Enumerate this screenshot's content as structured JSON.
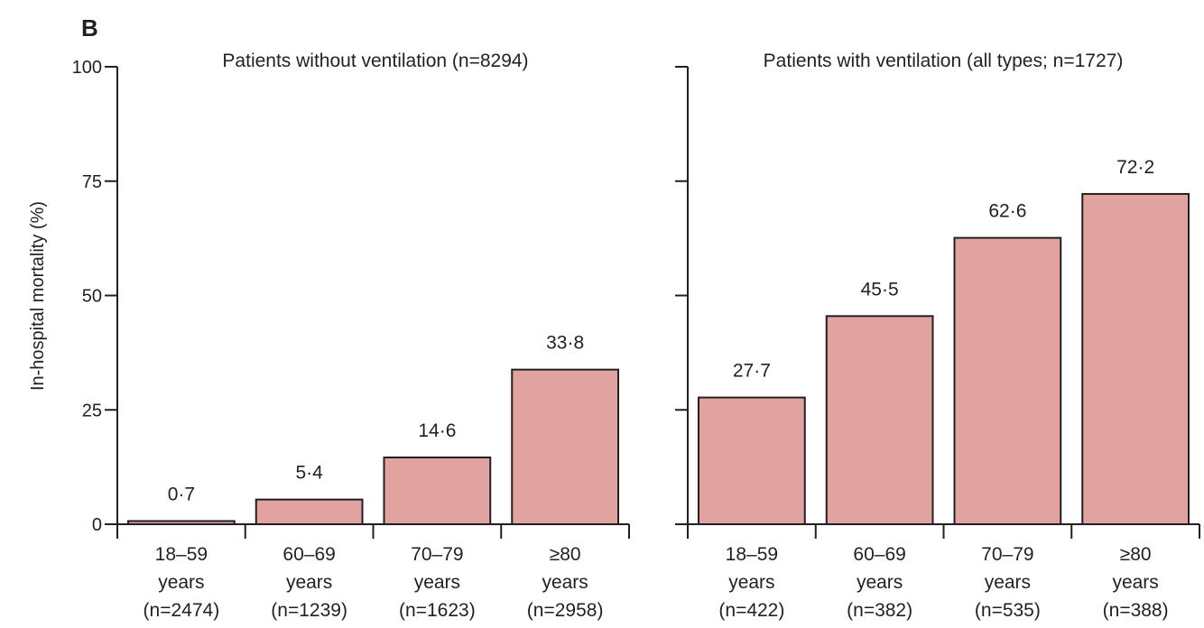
{
  "figure": {
    "panel_label": "B",
    "y_axis_title": "In-hospital mortality (%)",
    "bar_color": "#e0a39f",
    "axis_color": "#231f20"
  },
  "chart_data": [
    {
      "type": "bar",
      "title": "Patients without ventilation (n=8294)",
      "ylabel": "In-hospital mortality (%)",
      "ylim": [
        0,
        100
      ],
      "yticks": [
        0,
        25,
        50,
        75,
        100
      ],
      "grid": false,
      "categories": [
        [
          "18–59",
          "years",
          "(n=2474)"
        ],
        [
          "60–69",
          "years",
          "(n=1239)"
        ],
        [
          "70–79",
          "years",
          "(n=1623)"
        ],
        [
          "≥80",
          "years",
          "(n=2958)"
        ]
      ],
      "values": [
        0.7,
        5.4,
        14.6,
        33.8
      ],
      "value_labels": [
        "0·7",
        "5·4",
        "14·6",
        "33·8"
      ]
    },
    {
      "type": "bar",
      "title": "Patients with ventilation (all types; n=1727)",
      "ylim": [
        0,
        100
      ],
      "yticks": [
        0,
        25,
        50,
        75,
        100
      ],
      "grid": false,
      "categories": [
        [
          "18–59",
          "years",
          "(n=422)"
        ],
        [
          "60–69",
          "years",
          "(n=382)"
        ],
        [
          "70–79",
          "years",
          "(n=535)"
        ],
        [
          "≥80",
          "years",
          "(n=388)"
        ]
      ],
      "values": [
        27.7,
        45.5,
        62.6,
        72.2
      ],
      "value_labels": [
        "27·7",
        "45·5",
        "62·6",
        "72·2"
      ]
    }
  ]
}
